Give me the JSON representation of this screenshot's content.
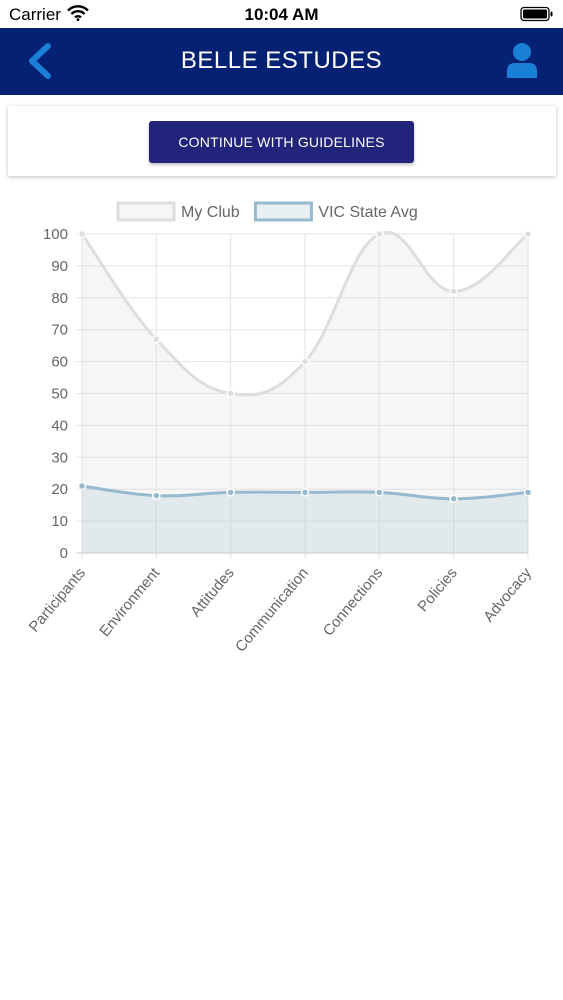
{
  "status_bar": {
    "carrier": "Carrier",
    "time": "10:04 AM"
  },
  "header": {
    "title": "BELLE ESTUDES"
  },
  "actions": {
    "continue_label": "CONTINUE WITH GUIDELINES"
  },
  "colors": {
    "navbar": "#042174",
    "button": "#22237a",
    "accent_icon": "#1a7fd6",
    "series_my_club": "#dddde2",
    "series_state": "#97b9cd"
  },
  "chart_data": {
    "type": "line",
    "categories": [
      "Participants",
      "Environment",
      "Attitudes",
      "Communication",
      "Connections",
      "Policies",
      "Advocacy"
    ],
    "series": [
      {
        "name": "My Club",
        "values": [
          100,
          67,
          50,
          60,
          100,
          82,
          100
        ]
      },
      {
        "name": "VIC State Avg",
        "values": [
          21,
          18,
          19,
          19,
          19,
          17,
          19
        ]
      }
    ],
    "ylim": [
      0,
      100
    ],
    "yticks": [
      0,
      10,
      20,
      30,
      40,
      50,
      60,
      70,
      80,
      90,
      100
    ],
    "legend": "top",
    "grid": true,
    "fill": true
  }
}
